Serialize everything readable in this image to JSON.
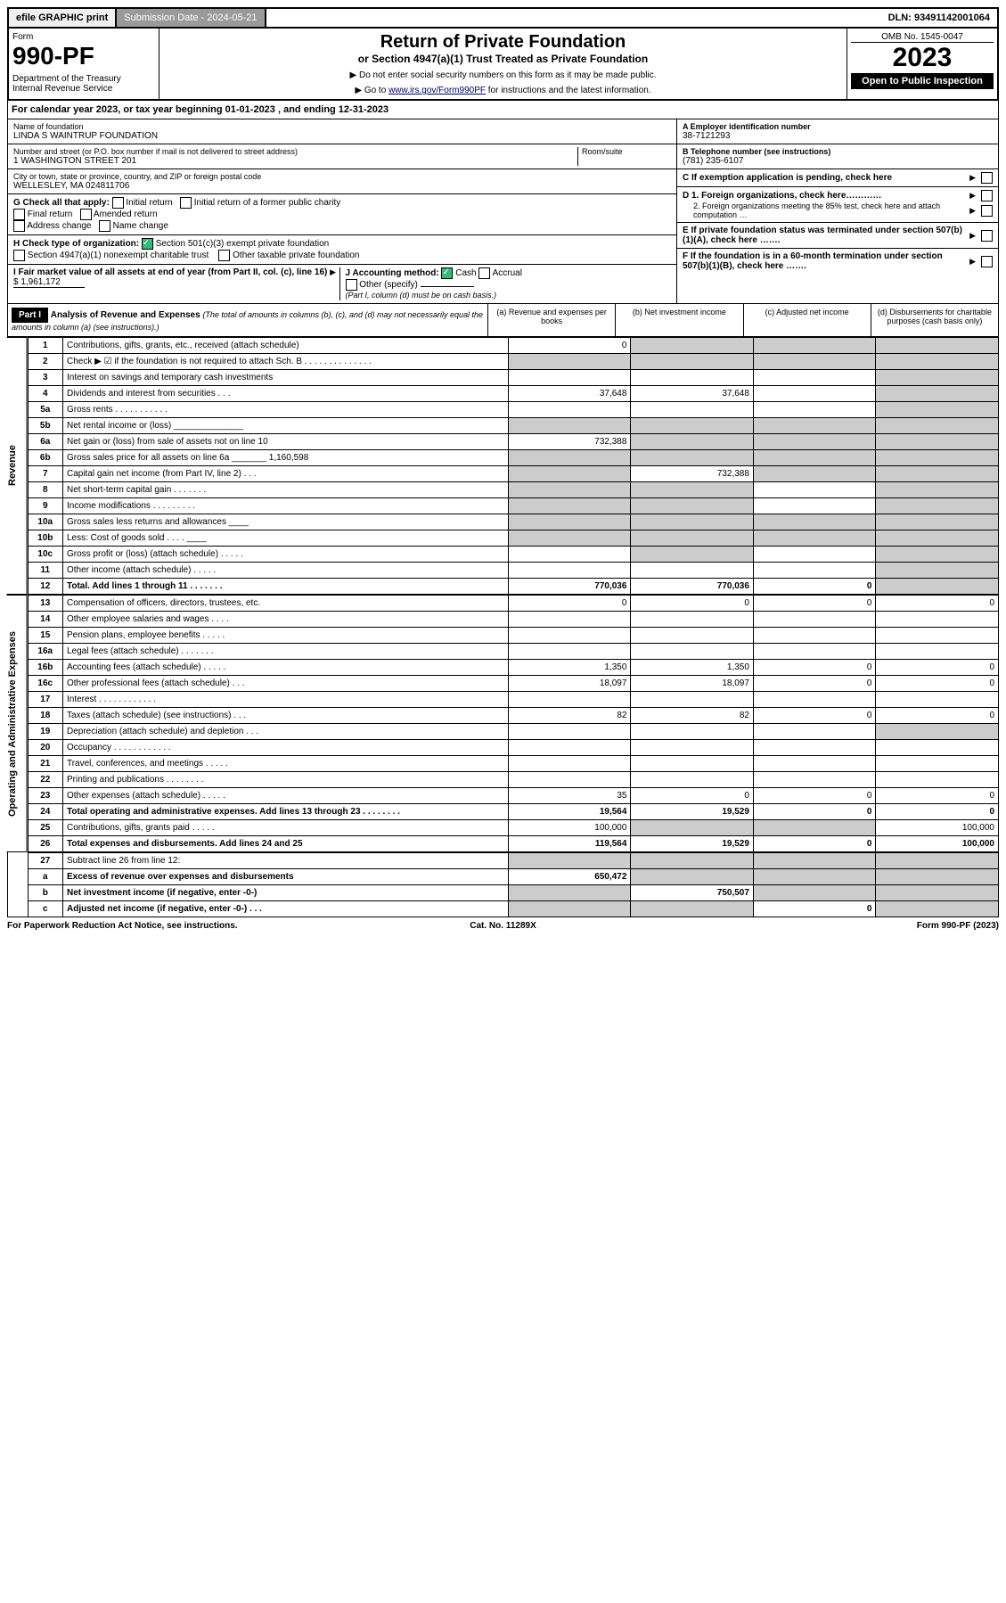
{
  "top": {
    "efile": "efile GRAPHIC print",
    "sub_label": "Submission Date - 2024-05-21",
    "dln": "DLN: 93491142001064"
  },
  "header": {
    "form_label": "Form",
    "form_no": "990-PF",
    "dept": "Department of the Treasury\nInternal Revenue Service",
    "title": "Return of Private Foundation",
    "subtitle": "or Section 4947(a)(1) Trust Treated as Private Foundation",
    "instr1": "▶ Do not enter social security numbers on this form as it may be made public.",
    "instr2_pre": "▶ Go to ",
    "instr2_link": "www.irs.gov/Form990PF",
    "instr2_post": " for instructions and the latest information.",
    "omb": "OMB No. 1545-0047",
    "year": "2023",
    "open": "Open to Public Inspection"
  },
  "calyear": "For calendar year 2023, or tax year beginning 01-01-2023                           , and ending 12-31-2023",
  "info_left": {
    "name_lbl": "Name of foundation",
    "name": "LINDA S WAINTRUP FOUNDATION",
    "addr_lbl": "Number and street (or P.O. box number if mail is not delivered to street address)",
    "addr": "1 WASHINGTON STREET 201",
    "room_lbl": "Room/suite",
    "city_lbl": "City or town, state or province, country, and ZIP or foreign postal code",
    "city": "WELLESLEY, MA  024811706"
  },
  "info_right": {
    "a_lbl": "A Employer identification number",
    "a_val": "38-7121293",
    "b_lbl": "B Telephone number (see instructions)",
    "b_val": "(781) 235-6107",
    "c_lbl": "C If exemption application is pending, check here",
    "d1": "D 1. Foreign organizations, check here…………",
    "d2": "2. Foreign organizations meeting the 85% test, check here and attach computation …",
    "e_lbl": "E  If private foundation status was terminated under section 507(b)(1)(A), check here …….",
    "f_lbl": "F  If the foundation is in a 60-month termination under section 507(b)(1)(B), check here ……."
  },
  "g": {
    "label": "G Check all that apply:",
    "opts": [
      "Initial return",
      "Initial return of a former public charity",
      "Final return",
      "Amended return",
      "Address change",
      "Name change"
    ]
  },
  "h": {
    "label": "H Check type of organization:",
    "o1": "Section 501(c)(3) exempt private foundation",
    "o2": "Section 4947(a)(1) nonexempt charitable trust",
    "o3": "Other taxable private foundation"
  },
  "i": {
    "label": "I Fair market value of all assets at end of year (from Part II, col. (c), line 16)",
    "val": "$  1,961,172"
  },
  "j": {
    "label": "J Accounting method:",
    "cash": "Cash",
    "accrual": "Accrual",
    "other": "Other (specify)",
    "note": "(Part I, column (d) must be on cash basis.)"
  },
  "part1": {
    "label": "Part I",
    "title": "Analysis of Revenue and Expenses",
    "note": "(The total of amounts in columns (b), (c), and (d) may not necessarily equal the amounts in column (a) (see instructions).)",
    "col_a": "(a)  Revenue and expenses per books",
    "col_b": "(b)  Net investment income",
    "col_c": "(c)  Adjusted net income",
    "col_d": "(d)  Disbursements for charitable purposes (cash basis only)"
  },
  "rev_label": "Revenue",
  "exp_label": "Operating and Administrative Expenses",
  "lines": {
    "1": {
      "d": "Contributions, gifts, grants, etc., received (attach schedule)",
      "a": "0",
      "b": "",
      "c": "",
      "dd": "",
      "gb": true,
      "gc": true,
      "gd": true
    },
    "2": {
      "d": "Check ▶ ☑ if the foundation is not required to attach Sch. B  .  .  .  .  .  .  .  .  .  .  .  .  .  .",
      "a": "",
      "b": "",
      "c": "",
      "dd": "",
      "ga": true,
      "gb": true,
      "gc": true,
      "gd": true
    },
    "3": {
      "d": "Interest on savings and temporary cash investments",
      "a": "",
      "b": "",
      "c": "",
      "dd": "",
      "gd": true
    },
    "4": {
      "d": "Dividends and interest from securities   .   .   .",
      "a": "37,648",
      "b": "37,648",
      "c": "",
      "dd": "",
      "gd": true
    },
    "5a": {
      "d": "Gross rents   .   .   .   .   .   .   .   .   .   .   .",
      "a": "",
      "b": "",
      "c": "",
      "dd": "",
      "gd": true
    },
    "5b": {
      "d": "Net rental income or (loss)  ______________",
      "a": "",
      "b": "",
      "c": "",
      "dd": "",
      "ga": true,
      "gb": true,
      "gc": true,
      "gd": true
    },
    "6a": {
      "d": "Net gain or (loss) from sale of assets not on line 10",
      "a": "732,388",
      "b": "",
      "c": "",
      "dd": "",
      "gb": true,
      "gc": true,
      "gd": true
    },
    "6b": {
      "d": "Gross sales price for all assets on line 6a _______ 1,160,598",
      "a": "",
      "b": "",
      "c": "",
      "dd": "",
      "ga": true,
      "gb": true,
      "gc": true,
      "gd": true
    },
    "7": {
      "d": "Capital gain net income (from Part IV, line 2)   .   .   .",
      "a": "",
      "b": "732,388",
      "c": "",
      "dd": "",
      "ga": true,
      "gc": true,
      "gd": true
    },
    "8": {
      "d": "Net short-term capital gain   .   .   .   .   .   .   .",
      "a": "",
      "b": "",
      "c": "",
      "dd": "",
      "ga": true,
      "gb": true,
      "gd": true
    },
    "9": {
      "d": "Income modifications  .   .   .   .   .   .   .   .   .",
      "a": "",
      "b": "",
      "c": "",
      "dd": "",
      "ga": true,
      "gb": true,
      "gd": true
    },
    "10a": {
      "d": "Gross sales less returns and allowances  ____",
      "a": "",
      "b": "",
      "c": "",
      "dd": "",
      "ga": true,
      "gb": true,
      "gc": true,
      "gd": true
    },
    "10b": {
      "d": "Less: Cost of goods sold   .   .   .   .  ____",
      "a": "",
      "b": "",
      "c": "",
      "dd": "",
      "ga": true,
      "gb": true,
      "gc": true,
      "gd": true
    },
    "10c": {
      "d": "Gross profit or (loss) (attach schedule)    .   .   .   .   .",
      "a": "",
      "b": "",
      "c": "",
      "dd": "",
      "gb": true,
      "gd": true
    },
    "11": {
      "d": "Other income (attach schedule)   .   .   .   .   .",
      "a": "",
      "b": "",
      "c": "",
      "dd": "",
      "gd": true
    },
    "12": {
      "d": "Total. Add lines 1 through 11   .   .   .   .   .   .   .",
      "a": "770,036",
      "b": "770,036",
      "c": "0",
      "dd": "",
      "gd": true,
      "bold": true
    },
    "13": {
      "d": "Compensation of officers, directors, trustees, etc.",
      "a": "0",
      "b": "0",
      "c": "0",
      "dd": "0"
    },
    "14": {
      "d": "Other employee salaries and wages   .   .   .   .",
      "a": "",
      "b": "",
      "c": "",
      "dd": ""
    },
    "15": {
      "d": "Pension plans, employee benefits   .   .   .   .   .",
      "a": "",
      "b": "",
      "c": "",
      "dd": ""
    },
    "16a": {
      "d": "Legal fees (attach schedule)  .   .   .   .   .   .   .",
      "a": "",
      "b": "",
      "c": "",
      "dd": ""
    },
    "16b": {
      "d": "Accounting fees (attach schedule)  .   .   .   .   .",
      "a": "1,350",
      "b": "1,350",
      "c": "0",
      "dd": "0"
    },
    "16c": {
      "d": "Other professional fees (attach schedule)    .   .   .",
      "a": "18,097",
      "b": "18,097",
      "c": "0",
      "dd": "0"
    },
    "17": {
      "d": "Interest  .   .   .   .   .   .   .   .   .   .   .   .",
      "a": "",
      "b": "",
      "c": "",
      "dd": ""
    },
    "18": {
      "d": "Taxes (attach schedule) (see instructions)    .   .   .",
      "a": "82",
      "b": "82",
      "c": "0",
      "dd": "0"
    },
    "19": {
      "d": "Depreciation (attach schedule) and depletion    .   .   .",
      "a": "",
      "b": "",
      "c": "",
      "dd": "",
      "gd": true
    },
    "20": {
      "d": "Occupancy  .   .   .   .   .   .   .   .   .   .   .   .",
      "a": "",
      "b": "",
      "c": "",
      "dd": ""
    },
    "21": {
      "d": "Travel, conferences, and meetings  .   .   .   .   .",
      "a": "",
      "b": "",
      "c": "",
      "dd": ""
    },
    "22": {
      "d": "Printing and publications  .   .   .   .   .   .   .   .",
      "a": "",
      "b": "",
      "c": "",
      "dd": ""
    },
    "23": {
      "d": "Other expenses (attach schedule)  .   .   .   .   .",
      "a": "35",
      "b": "0",
      "c": "0",
      "dd": "0"
    },
    "24": {
      "d": "Total operating and administrative expenses. Add lines 13 through 23   .   .   .   .   .   .   .   .",
      "a": "19,564",
      "b": "19,529",
      "c": "0",
      "dd": "0",
      "bold": true
    },
    "25": {
      "d": "Contributions, gifts, grants paid   .   .   .   .   .",
      "a": "100,000",
      "b": "",
      "c": "",
      "dd": "100,000",
      "gb": true,
      "gc": true
    },
    "26": {
      "d": "Total expenses and disbursements. Add lines 24 and 25",
      "a": "119,564",
      "b": "19,529",
      "c": "0",
      "dd": "100,000",
      "bold": true
    },
    "27": {
      "d": "Subtract line 26 from line 12:",
      "a": "",
      "b": "",
      "c": "",
      "dd": "",
      "ga": true,
      "gb": true,
      "gc": true,
      "gd": true
    },
    "27a": {
      "d": "Excess of revenue over expenses and disbursements",
      "a": "650,472",
      "b": "",
      "c": "",
      "dd": "",
      "gb": true,
      "gc": true,
      "gd": true,
      "bold": true
    },
    "27b": {
      "d": "Net investment income (if negative, enter -0-)",
      "a": "",
      "b": "750,507",
      "c": "",
      "dd": "",
      "ga": true,
      "gc": true,
      "gd": true,
      "bold": true
    },
    "27c": {
      "d": "Adjusted net income (if negative, enter -0-)   .   .   .",
      "a": "",
      "b": "",
      "c": "0",
      "dd": "",
      "ga": true,
      "gb": true,
      "gd": true,
      "bold": true
    }
  },
  "rev_order": [
    "1",
    "2",
    "3",
    "4",
    "5a",
    "5b",
    "6a",
    "6b",
    "7",
    "8",
    "9",
    "10a",
    "10b",
    "10c",
    "11",
    "12"
  ],
  "exp_order": [
    "13",
    "14",
    "15",
    "16a",
    "16b",
    "16c",
    "17",
    "18",
    "19",
    "20",
    "21",
    "22",
    "23",
    "24",
    "25",
    "26"
  ],
  "bot_order": [
    "27",
    "27a",
    "27b",
    "27c"
  ],
  "bot_lnmap": {
    "27": "27",
    "27a": "a",
    "27b": "b",
    "27c": "c"
  },
  "footer": {
    "left": "For Paperwork Reduction Act Notice, see instructions.",
    "mid": "Cat. No. 11289X",
    "right": "Form 990-PF (2023)"
  }
}
